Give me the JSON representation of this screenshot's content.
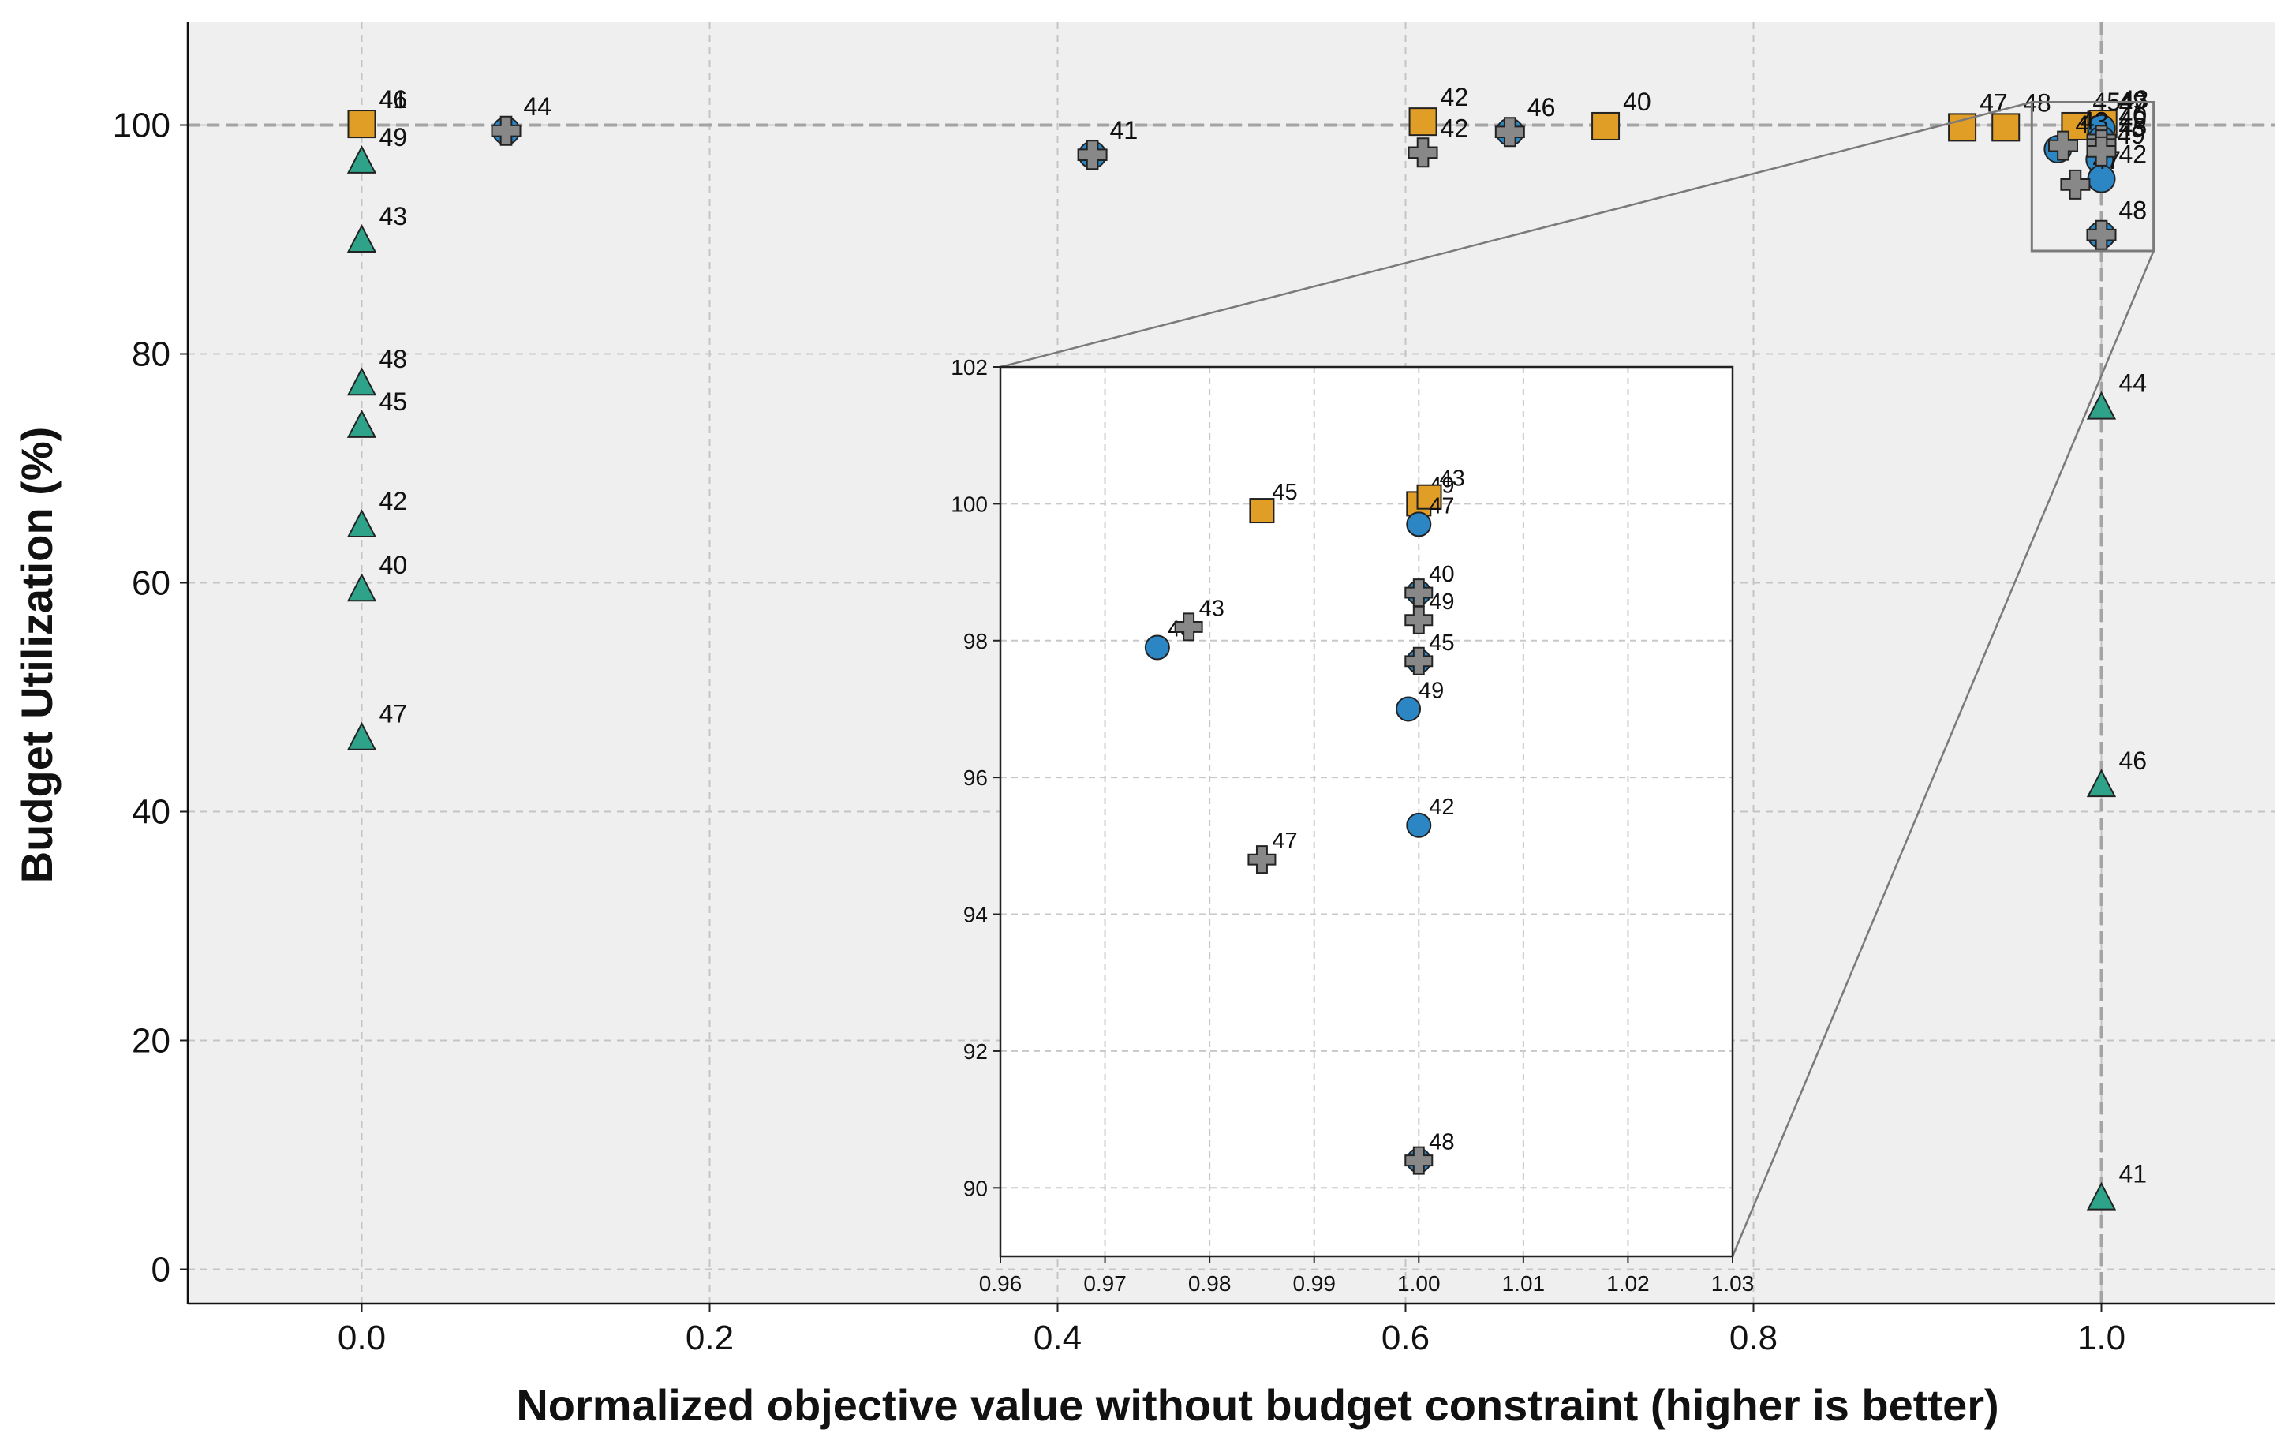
{
  "chart_data": {
    "type": "scatter",
    "xlabel": "Normalized objective value without budget constraint (higher is better)",
    "ylabel": "Budget Utilization (%)",
    "xlim": [
      -0.1,
      1.1
    ],
    "ylim": [
      -3,
      109
    ],
    "x_ticks": [
      0.0,
      0.2,
      0.4,
      0.6,
      0.8,
      1.0
    ],
    "x_tick_labels": [
      "0.0",
      "0.2",
      "0.4",
      "0.6",
      "0.8",
      "1.0"
    ],
    "y_ticks": [
      0,
      20,
      40,
      60,
      80,
      100
    ],
    "y_tick_labels": [
      "0",
      "20",
      "40",
      "60",
      "80",
      "100"
    ],
    "grid": true,
    "reference_lines": {
      "x": 1.0,
      "y": 100
    },
    "legend": "none",
    "series": [
      {
        "marker": "triangle",
        "color": "#2fa38a",
        "points": [
          {
            "label": "49",
            "x": 0.0,
            "y": 96.8
          },
          {
            "label": "43",
            "x": 0.0,
            "y": 89.9
          },
          {
            "label": "48",
            "x": 0.0,
            "y": 77.4
          },
          {
            "label": "45",
            "x": 0.0,
            "y": 73.7
          },
          {
            "label": "42",
            "x": 0.0,
            "y": 65.0
          },
          {
            "label": "40",
            "x": 0.0,
            "y": 59.4
          },
          {
            "label": "47",
            "x": 0.0,
            "y": 46.4
          },
          {
            "label": "44",
            "x": 1.0,
            "y": 75.3
          },
          {
            "label": "46",
            "x": 1.0,
            "y": 42.3
          },
          {
            "label": "41",
            "x": 1.0,
            "y": 6.2
          }
        ]
      },
      {
        "marker": "square",
        "color": "#e09e27",
        "points": [
          {
            "label": "41",
            "x": 0.0,
            "y": 100.1
          },
          {
            "label": "46",
            "x": 0.0,
            "y": 100.1
          },
          {
            "label": "42",
            "x": 0.61,
            "y": 100.3
          },
          {
            "label": "40",
            "x": 0.715,
            "y": 99.9
          },
          {
            "label": "47",
            "x": 0.92,
            "y": 99.8
          },
          {
            "label": "48",
            "x": 0.945,
            "y": 99.8
          },
          {
            "label": "45",
            "x": 0.985,
            "y": 99.9
          },
          {
            "label": "49",
            "x": 1.0,
            "y": 100.0
          },
          {
            "label": "43",
            "x": 1.001,
            "y": 100.1
          }
        ]
      },
      {
        "marker": "circle",
        "color": "#2c86c4",
        "points": [
          {
            "label": "44",
            "x": 0.083,
            "y": 99.5
          },
          {
            "label": "41",
            "x": 0.42,
            "y": 97.4
          },
          {
            "label": "46",
            "x": 0.66,
            "y": 99.4
          },
          {
            "label": "43",
            "x": 0.975,
            "y": 97.9
          },
          {
            "label": "47",
            "x": 1.0,
            "y": 99.7
          },
          {
            "label": "40",
            "x": 1.0,
            "y": 98.7
          },
          {
            "label": "45",
            "x": 1.0,
            "y": 97.7
          },
          {
            "label": "49",
            "x": 0.999,
            "y": 97.0
          },
          {
            "label": "42",
            "x": 1.0,
            "y": 95.3
          },
          {
            "label": "48",
            "x": 1.0,
            "y": 90.4
          }
        ]
      },
      {
        "marker": "plus",
        "color": "#888888",
        "points": [
          {
            "label": "44",
            "x": 0.083,
            "y": 99.5
          },
          {
            "label": "41",
            "x": 0.42,
            "y": 97.4
          },
          {
            "label": "42",
            "x": 0.61,
            "y": 97.6
          },
          {
            "label": "46",
            "x": 0.66,
            "y": 99.4
          },
          {
            "label": "43",
            "x": 0.978,
            "y": 98.2
          },
          {
            "label": "47",
            "x": 0.985,
            "y": 94.8
          },
          {
            "label": "40",
            "x": 1.0,
            "y": 98.7
          },
          {
            "label": "49",
            "x": 1.0,
            "y": 98.3
          },
          {
            "label": "45",
            "x": 1.0,
            "y": 97.7
          },
          {
            "label": "48",
            "x": 1.0,
            "y": 90.4
          }
        ]
      }
    ],
    "inset": {
      "xlim": [
        0.96,
        1.03
      ],
      "ylim": [
        89,
        102
      ],
      "x_ticks": [
        0.96,
        0.97,
        0.98,
        0.99,
        1.0,
        1.01,
        1.02,
        1.03
      ],
      "x_tick_labels": [
        "0.96",
        "0.97",
        "0.98",
        "0.99",
        "1.00",
        "1.01",
        "1.02",
        "1.03"
      ],
      "y_ticks": [
        90,
        92,
        94,
        96,
        98,
        100,
        102
      ],
      "y_tick_labels": [
        "90",
        "92",
        "94",
        "96",
        "98",
        "100",
        "102"
      ]
    }
  }
}
